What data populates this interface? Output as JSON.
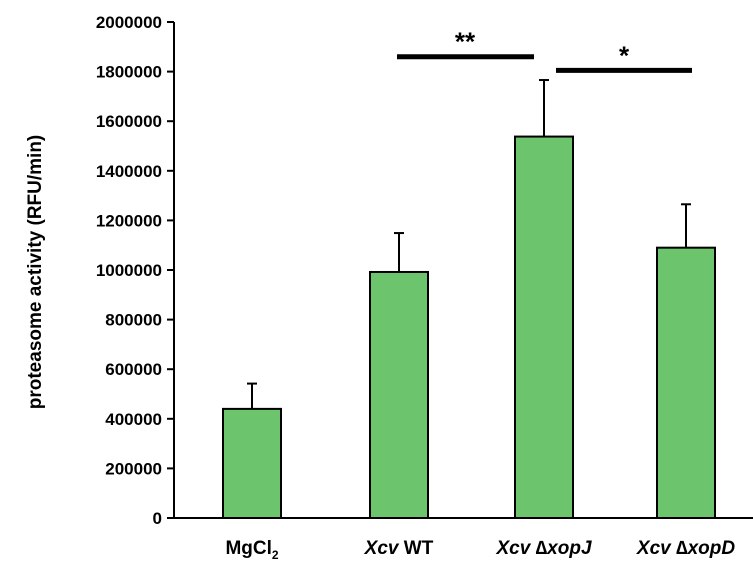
{
  "chart_data": {
    "type": "bar",
    "categories": [
      {
        "italic": "",
        "text": "MgCl",
        "sub": "2"
      },
      {
        "italic": "Xcv",
        "text": " WT",
        "sub": ""
      },
      {
        "italic": "Xcv ∆xopJ",
        "text": "",
        "sub": ""
      },
      {
        "italic": "Xcv ∆xopD",
        "text": "",
        "sub": ""
      }
    ],
    "values": [
      440000,
      992000,
      1538000,
      1090000
    ],
    "errors": [
      102000,
      157000,
      228000,
      175000
    ],
    "ylabel": "proteasome activity (RFU/min)",
    "xlabel": "",
    "ylim": [
      0,
      2000000
    ],
    "yticks": [
      0,
      200000,
      400000,
      600000,
      800000,
      1000000,
      1200000,
      1400000,
      1600000,
      1800000,
      2000000
    ],
    "ytick_labels": [
      "0",
      "200000",
      "400000",
      "600000",
      "800000",
      "1000000",
      "1200000",
      "1400000",
      "1600000",
      "1800000",
      "2000000"
    ],
    "bar_color": "#6cc56c",
    "edge_color": "#000000",
    "grid": false,
    "significance": [
      {
        "from": 1,
        "to": 2,
        "label": "**",
        "level": 1860000
      },
      {
        "from": 2,
        "to": 3,
        "label": "*",
        "level": 1805000
      }
    ]
  }
}
